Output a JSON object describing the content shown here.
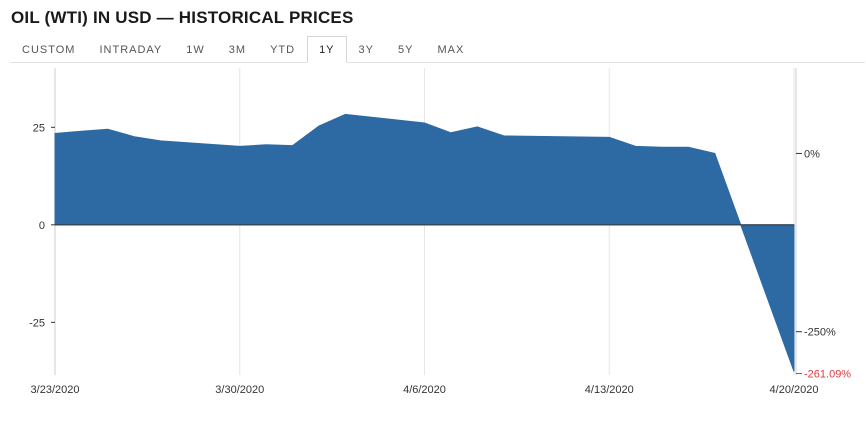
{
  "header": {
    "title": "OIL (WTI) IN USD — HISTORICAL PRICES"
  },
  "tabs": [
    {
      "label": "CUSTOM",
      "active": false
    },
    {
      "label": "INTRADAY",
      "active": false
    },
    {
      "label": "1W",
      "active": false
    },
    {
      "label": "3M",
      "active": false
    },
    {
      "label": "YTD",
      "active": false
    },
    {
      "label": "1Y",
      "active": true
    },
    {
      "label": "3Y",
      "active": false
    },
    {
      "label": "5Y",
      "active": false
    },
    {
      "label": "MAX",
      "active": false
    }
  ],
  "colors": {
    "area": "#2d6aa3",
    "negative_label": "#e0393e",
    "grid": "#e6e6e6"
  },
  "chart_data": {
    "type": "area",
    "x": [
      "3/23/2020",
      "3/24/2020",
      "3/25/2020",
      "3/26/2020",
      "3/27/2020",
      "3/30/2020",
      "3/31/2020",
      "4/1/2020",
      "4/2/2020",
      "4/3/2020",
      "4/6/2020",
      "4/7/2020",
      "4/8/2020",
      "4/9/2020",
      "4/13/2020",
      "4/14/2020",
      "4/15/2020",
      "4/16/2020",
      "4/17/2020",
      "4/20/2020"
    ],
    "values": [
      23.4,
      24.0,
      24.5,
      22.6,
      21.5,
      20.1,
      20.5,
      20.3,
      25.3,
      28.3,
      26.1,
      23.6,
      25.1,
      22.8,
      22.4,
      20.1,
      19.9,
      19.9,
      18.3,
      -37.6
    ],
    "x_ticks": [
      "3/23/2020",
      "3/30/2020",
      "4/6/2020",
      "4/13/2020",
      "4/20/2020"
    ],
    "y_ticks": [
      "25",
      "0",
      "-25"
    ],
    "y_tick_values": [
      25,
      0,
      -25
    ],
    "right_axis": {
      "ticks": [
        "0%",
        "-250%"
      ],
      "tick_values": [
        18.3,
        -27.4
      ],
      "change_label": "-261.09%"
    },
    "ylim": [
      -38.5,
      40.2
    ],
    "grid": true,
    "legend": "none"
  }
}
